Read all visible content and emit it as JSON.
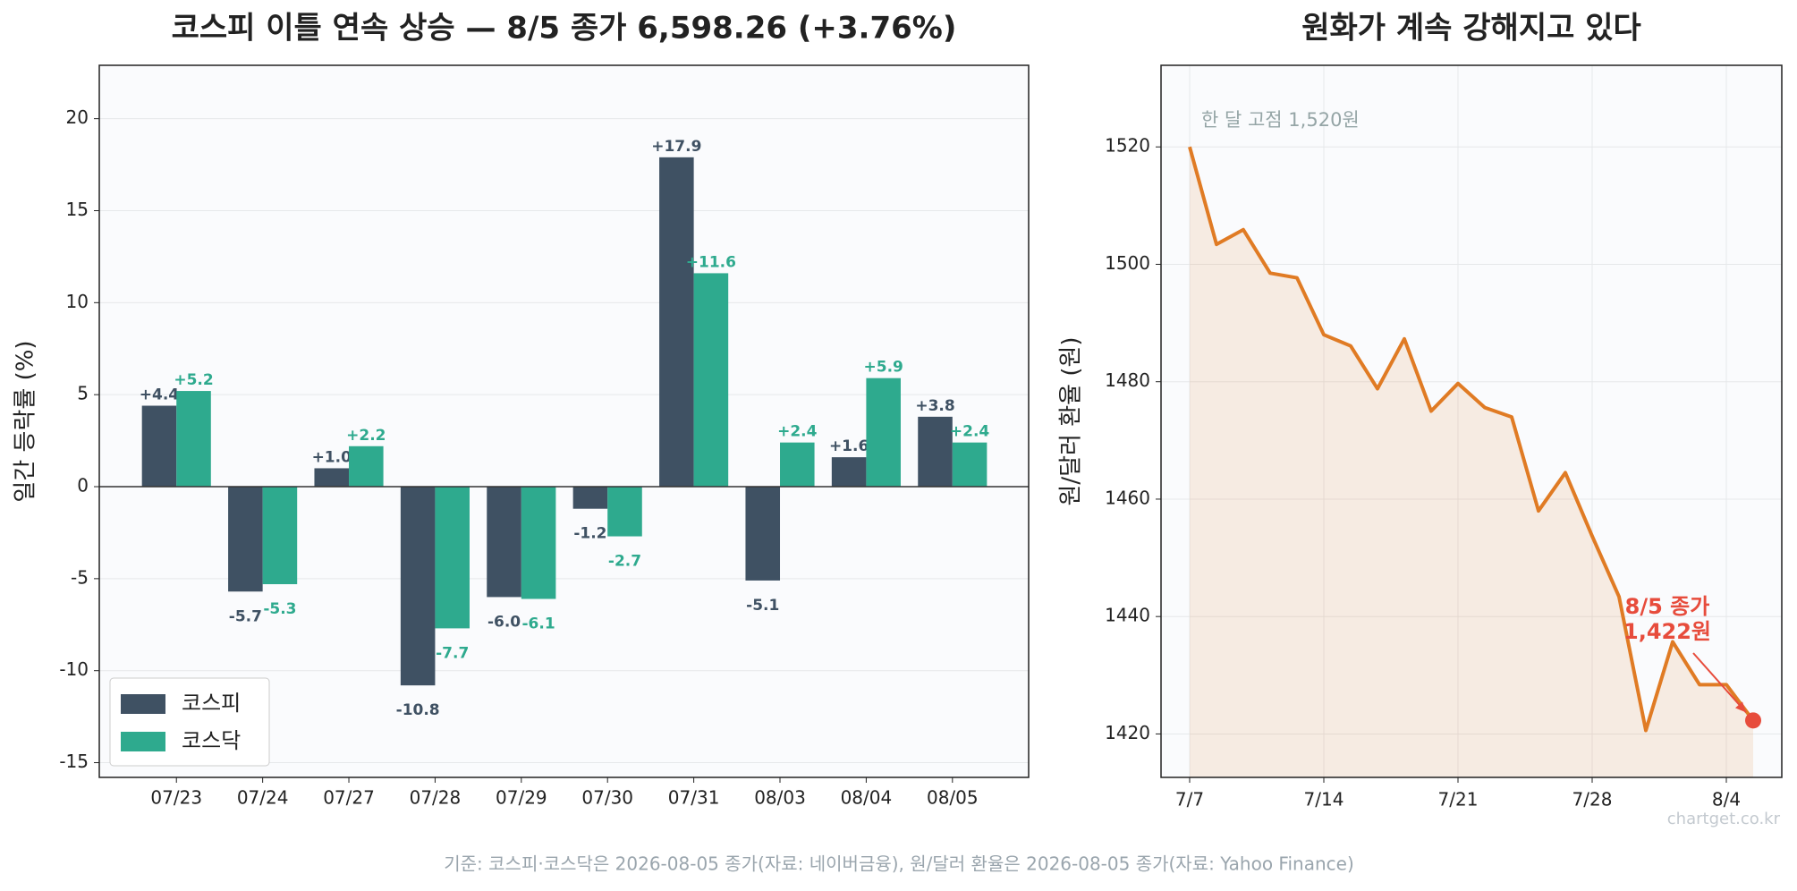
{
  "footer": "기준: 코스피·코스닥은 2026-08-05 종가(자료: 네이버금융), 원/달러 환율은 2026-08-05 종가(자료: Yahoo Finance)",
  "watermark": "chartget.co.kr",
  "chart_data": [
    {
      "type": "bar",
      "title": "코스피 이틀 연속 상승 — 8/5 종가 6,598.26 (+3.76%)",
      "y_label": "일간 등락률 (%)",
      "categories": [
        "07/23",
        "07/24",
        "07/27",
        "07/28",
        "07/29",
        "07/30",
        "07/31",
        "08/03",
        "08/04",
        "08/05"
      ],
      "series": [
        {
          "name": "코스피",
          "color": "#3f5163",
          "values": [
            4.4,
            -5.7,
            1.0,
            -10.8,
            -6.0,
            -1.2,
            17.9,
            -5.1,
            1.6,
            3.8
          ],
          "value_labels": [
            "+4.4",
            "-5.7",
            "+1.0",
            "-10.8",
            "-6.0",
            "-1.2",
            "+17.9",
            "-5.1",
            "+1.6",
            "+3.8"
          ]
        },
        {
          "name": "코스닥",
          "color": "#2eaa8e",
          "values": [
            5.2,
            -5.3,
            2.2,
            -7.7,
            -6.1,
            -2.7,
            11.6,
            2.4,
            5.9,
            2.4
          ],
          "value_labels": [
            "+5.2",
            "-5.3",
            "+2.2",
            "-7.7",
            "-6.1",
            "-2.7",
            "+11.6",
            "+2.4",
            "+5.9",
            "+2.4"
          ]
        }
      ],
      "ylim": [
        -15.8,
        22.9
      ],
      "yticks": [
        -15,
        -10,
        -5,
        0,
        5,
        10,
        15,
        20
      ],
      "grid": true,
      "legend": "lower left"
    },
    {
      "type": "line",
      "title": "원화가 계속 강해지고 있다",
      "y_label": "원/달러 환율 (원)",
      "categories": [
        "7/7",
        null,
        null,
        null,
        null,
        "7/14",
        null,
        null,
        null,
        null,
        "7/21",
        null,
        null,
        null,
        null,
        "7/28",
        null,
        null,
        null,
        null,
        "8/4",
        null
      ],
      "values": [
        1520,
        1503.4,
        1505.9,
        1498.5,
        1497.7,
        1488.0,
        1486.1,
        1478.8,
        1487.3,
        1475.0,
        1479.7,
        1475.6,
        1474.0,
        1458.0,
        1464.5,
        1453.7,
        1443.4,
        1420.6,
        1435.7,
        1428.4,
        1428.4,
        1422.3
      ],
      "color": "#e07b24",
      "marker_color": "#e74c3c",
      "ylim": [
        1412.6,
        1533.9
      ],
      "yticks": [
        1420,
        1440,
        1460,
        1480,
        1500,
        1520
      ],
      "grid": true,
      "annotations": [
        "한 달 고점 1,520원",
        "8/5 종가",
        "1,422원"
      ]
    }
  ]
}
